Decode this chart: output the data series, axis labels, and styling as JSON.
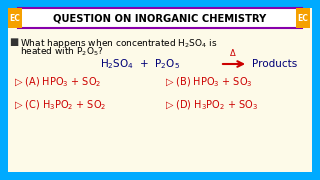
{
  "bg_outer": "#00AAFF",
  "bg_inner": "#FDFAE8",
  "header_bg": "#FFFFFF",
  "header_text": "QUESTION ON INORGANIC CHEMISTRY",
  "header_color": "#000000",
  "ec_bg": "#F5A000",
  "ec_text": "EC",
  "title_border": "#8800AA",
  "reaction_color": "#000077",
  "arrow_color": "#CC0000",
  "option_color": "#CC0000",
  "arrow_label": "Δ"
}
